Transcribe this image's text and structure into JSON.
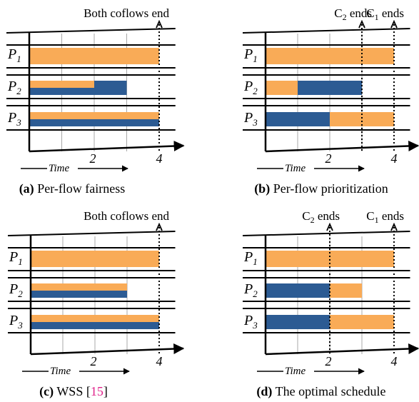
{
  "colors": {
    "orange": "#f9ab57",
    "blue": "#2c5b93",
    "axis": "#000000",
    "grid": "#a8a8a8",
    "ref": "#e0218a"
  },
  "common": {
    "time_label": "Time",
    "tick_2": "2",
    "tick_4": "4",
    "rows": [
      {
        "letter": "P",
        "sub": "1"
      },
      {
        "letter": "P",
        "sub": "2"
      },
      {
        "letter": "P",
        "sub": "3"
      }
    ]
  },
  "panels": [
    {
      "id": "a",
      "letter": "(a)",
      "caption": "Per-flow fairness",
      "annotations": [
        {
          "type": "plain",
          "text": "Both coflows end",
          "t": 4
        }
      ],
      "bars": [
        {
          "row": 0,
          "half": "full",
          "start": 0,
          "end": 4,
          "color": "orange"
        },
        {
          "row": 1,
          "half": "top",
          "start": 0,
          "end": 2,
          "color": "orange"
        },
        {
          "row": 1,
          "half": "bottom",
          "start": 0,
          "end": 3,
          "color": "blue"
        },
        {
          "row": 1,
          "half": "top",
          "start": 2,
          "end": 3,
          "color": "blue"
        },
        {
          "row": 2,
          "half": "top",
          "start": 0,
          "end": 4,
          "color": "orange"
        },
        {
          "row": 2,
          "half": "bottom",
          "start": 0,
          "end": 4,
          "color": "blue"
        }
      ]
    },
    {
      "id": "b",
      "letter": "(b)",
      "caption": "Per-flow prioritization",
      "annotations": [
        {
          "type": "coflow",
          "base": "C",
          "sub": "2",
          "suffix": " ends",
          "t": 3
        },
        {
          "type": "coflow",
          "base": "C",
          "sub": "1",
          "suffix": " ends",
          "t": 4
        }
      ],
      "bars": [
        {
          "row": 0,
          "half": "full",
          "start": 0,
          "end": 4,
          "color": "orange"
        },
        {
          "row": 1,
          "half": "full",
          "start": 0,
          "end": 1,
          "color": "orange"
        },
        {
          "row": 1,
          "half": "full",
          "start": 1,
          "end": 3,
          "color": "blue"
        },
        {
          "row": 2,
          "half": "full",
          "start": 0,
          "end": 2,
          "color": "blue"
        },
        {
          "row": 2,
          "half": "full",
          "start": 2,
          "end": 4,
          "color": "orange"
        }
      ]
    },
    {
      "id": "c",
      "letter": "(c)",
      "caption_prefix": "WSS [",
      "ref": "15",
      "caption_suffix": "]",
      "annotations": [
        {
          "type": "plain",
          "text": "Both coflows end",
          "t": 4
        }
      ],
      "bars": [
        {
          "row": 0,
          "half": "full",
          "start": 0,
          "end": 4,
          "color": "orange"
        },
        {
          "row": 1,
          "half": "top",
          "start": 0,
          "end": 3,
          "color": "orange"
        },
        {
          "row": 1,
          "half": "bottom",
          "start": 0,
          "end": 3,
          "color": "blue"
        },
        {
          "row": 2,
          "half": "top",
          "start": 0,
          "end": 4,
          "color": "orange"
        },
        {
          "row": 2,
          "half": "bottom",
          "start": 0,
          "end": 4,
          "color": "blue"
        }
      ]
    },
    {
      "id": "d",
      "letter": "(d)",
      "caption": "The optimal schedule",
      "annotations": [
        {
          "type": "coflow",
          "base": "C",
          "sub": "2",
          "suffix": " ends",
          "t": 2
        },
        {
          "type": "coflow",
          "base": "C",
          "sub": "1",
          "suffix": " ends",
          "t": 4
        }
      ],
      "bars": [
        {
          "row": 0,
          "half": "full",
          "start": 0,
          "end": 4,
          "color": "orange"
        },
        {
          "row": 1,
          "half": "full",
          "start": 0,
          "end": 2,
          "color": "blue"
        },
        {
          "row": 1,
          "half": "full",
          "start": 2,
          "end": 3,
          "color": "orange"
        },
        {
          "row": 2,
          "half": "full",
          "start": 0,
          "end": 2,
          "color": "blue"
        },
        {
          "row": 2,
          "half": "full",
          "start": 2,
          "end": 4,
          "color": "orange"
        }
      ]
    }
  ]
}
